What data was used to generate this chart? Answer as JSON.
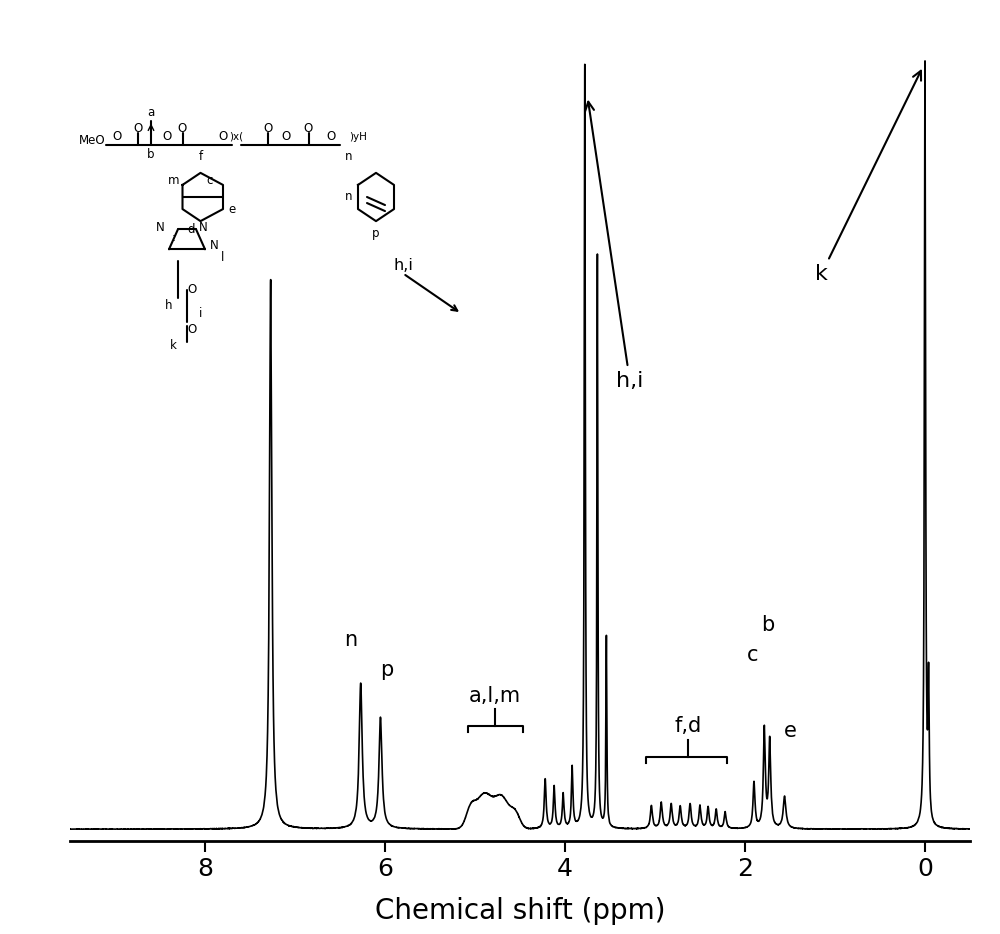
{
  "xlabel": "Chemical shift (ppm)",
  "xlim": [
    9.5,
    -0.5
  ],
  "ylim": [
    -0.015,
    1.05
  ],
  "xticks": [
    8,
    6,
    4,
    2,
    0
  ],
  "xlabel_fontsize": 20,
  "xtick_fontsize": 18,
  "background_color": "#ffffff",
  "linewidth": 1.2,
  "annotation_fontsize": 16,
  "label_fontsize": 15
}
